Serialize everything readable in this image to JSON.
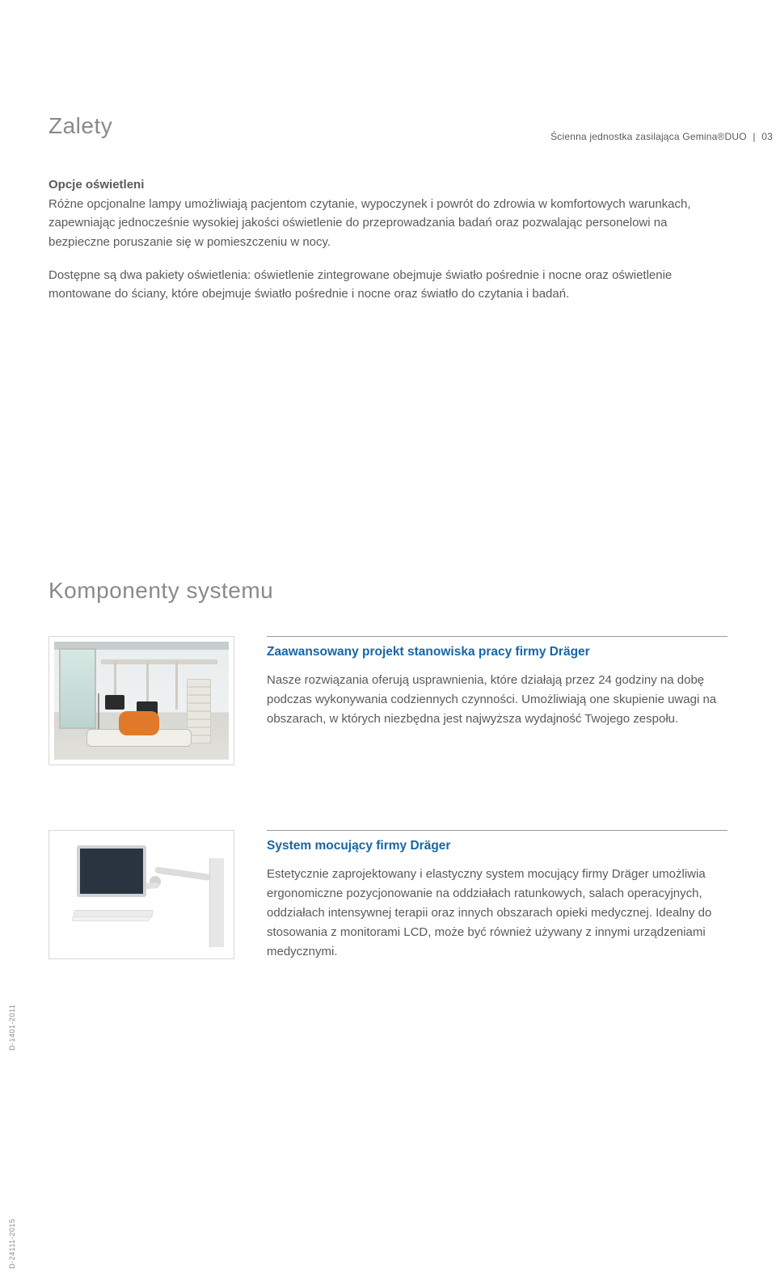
{
  "header": {
    "product": "Ścienna jednostka zasilająca Gemina®DUO",
    "page_no": "03"
  },
  "sections": {
    "advantages_title": "Zalety",
    "lighting_head": "Opcje oświetleni",
    "lighting_p1": "Różne opcjonalne lampy umożliwiają pacjentom czytanie, wypoczynek i powrót do zdrowia w komfortowych warunkach, zapewniając jednocześnie wysokiej jakości oświetlenie do przeprowadzania badań oraz pozwalając personelowi na bezpieczne poruszanie się w pomieszczeniu w nocy.",
    "lighting_p2": "Dostępne są dwa pakiety oświetlenia: oświetlenie zintegrowane obejmuje światło pośrednie i nocne oraz oświetlenie montowane do ściany, które obejmuje światło pośrednie i nocne oraz światło do czytania i badań."
  },
  "components": {
    "title": "Komponenty systemu",
    "items": [
      {
        "title": "Zaawansowany projekt stanowiska pracy firmy Dräger",
        "desc": "Nasze rozwiązania oferują usprawnienia, które działają przez 24 godziny na dobę podczas wykonywania codziennych czynności. Umożliwiają one skupienie uwagi na obszarach, w których niezbędna jest najwyższa wydajność Twojego zespołu.",
        "side_code": "D-1401-2011"
      },
      {
        "title": "System mocujący firmy Dräger",
        "desc": "Estetycznie zaprojektowany i elastyczny system mocujący firmy Dräger umożliwia ergonomiczne pozycjonowanie na oddziałach ratunkowych, salach operacyjnych, oddziałach intensywnej terapii oraz innych obszarach opieki medycznej. Idealny do stosowania z monitorami LCD, może być również używany z innymi urządzeniami medycznymi.",
        "side_code": "D-24111-2015"
      }
    ]
  },
  "colors": {
    "heading_gray": "#8a8a8a",
    "body_gray": "#5a5a5a",
    "link_blue": "#1766a6",
    "rule_gray": "#9a9a9a",
    "page_bg": "#ffffff"
  },
  "typography": {
    "section_title_pt": 28,
    "body_pt": 15,
    "subhead_weight": 700,
    "component_title_pt": 15.5
  }
}
